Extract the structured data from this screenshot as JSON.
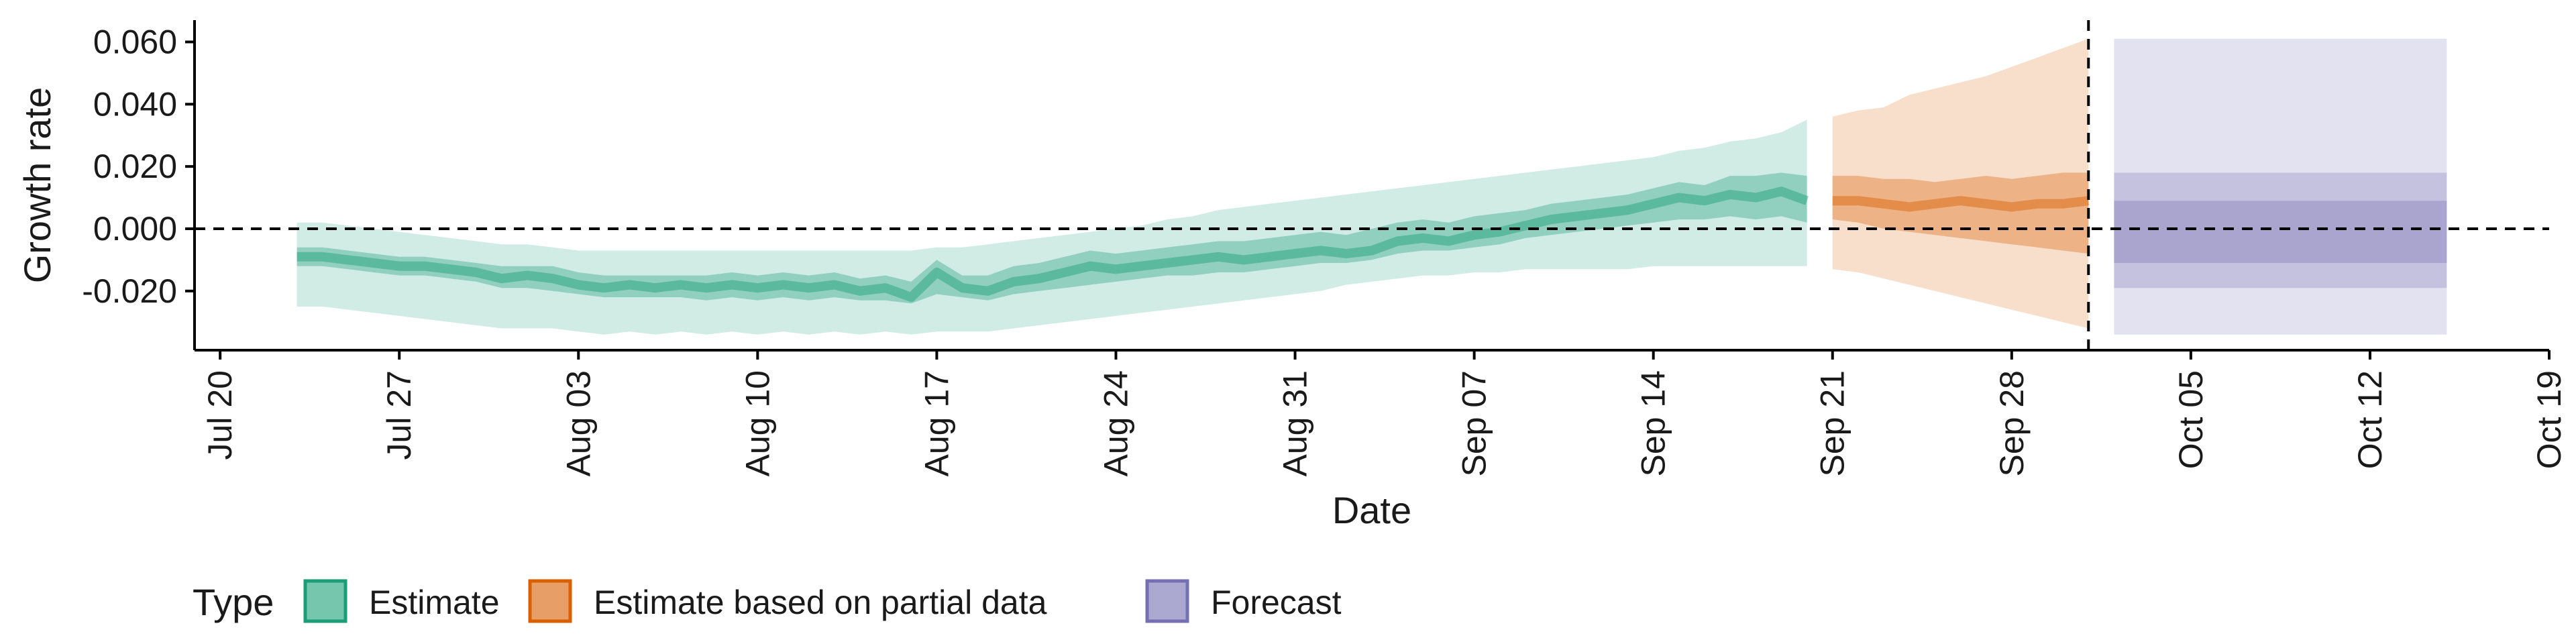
{
  "chart_data": {
    "type": "area",
    "xlabel": "Date",
    "ylabel": "Growth rate",
    "x_ticks": [
      {
        "date": "2020-07-20",
        "label": "Jul 20"
      },
      {
        "date": "2020-07-27",
        "label": "Jul 27"
      },
      {
        "date": "2020-08-03",
        "label": "Aug 03"
      },
      {
        "date": "2020-08-10",
        "label": "Aug 10"
      },
      {
        "date": "2020-08-17",
        "label": "Aug 17"
      },
      {
        "date": "2020-08-24",
        "label": "Aug 24"
      },
      {
        "date": "2020-08-31",
        "label": "Aug 31"
      },
      {
        "date": "2020-09-07",
        "label": "Sep 07"
      },
      {
        "date": "2020-09-14",
        "label": "Sep 14"
      },
      {
        "date": "2020-09-21",
        "label": "Sep 21"
      },
      {
        "date": "2020-09-28",
        "label": "Sep 28"
      },
      {
        "date": "2020-10-05",
        "label": "Oct 05"
      },
      {
        "date": "2020-10-12",
        "label": "Oct 12"
      },
      {
        "date": "2020-10-19",
        "label": "Oct 19"
      }
    ],
    "y_ticks": [
      {
        "value": -0.02,
        "label": "-0.020"
      },
      {
        "value": 0.0,
        "label": "0.000"
      },
      {
        "value": 0.02,
        "label": "0.020"
      },
      {
        "value": 0.04,
        "label": "0.040"
      },
      {
        "value": 0.06,
        "label": "0.060"
      }
    ],
    "xlim": [
      "2020-07-19",
      "2020-10-19"
    ],
    "ylim": [
      -0.039,
      0.067
    ],
    "reference_lines": {
      "horizontal_y": 0.0,
      "vertical_date": "2020-10-01"
    },
    "grid": false,
    "legend": {
      "title": "Type",
      "placement": "bottom-left",
      "entries": [
        {
          "label": "Estimate",
          "color": "#1b9e77"
        },
        {
          "label": "Estimate based on partial data",
          "color": "#d95f02"
        },
        {
          "label": "Forecast",
          "color": "#7570b3"
        }
      ]
    },
    "series": [
      {
        "type_key": "estimate",
        "color": "#1b9e77",
        "dates": [
          "2020-07-23",
          "2020-07-24",
          "2020-07-25",
          "2020-07-26",
          "2020-07-27",
          "2020-07-28",
          "2020-07-29",
          "2020-07-30",
          "2020-07-31",
          "2020-08-01",
          "2020-08-02",
          "2020-08-03",
          "2020-08-04",
          "2020-08-05",
          "2020-08-06",
          "2020-08-07",
          "2020-08-08",
          "2020-08-09",
          "2020-08-10",
          "2020-08-11",
          "2020-08-12",
          "2020-08-13",
          "2020-08-14",
          "2020-08-15",
          "2020-08-16",
          "2020-08-17",
          "2020-08-18",
          "2020-08-19",
          "2020-08-20",
          "2020-08-21",
          "2020-08-22",
          "2020-08-23",
          "2020-08-24",
          "2020-08-25",
          "2020-08-26",
          "2020-08-27",
          "2020-08-28",
          "2020-08-29",
          "2020-08-30",
          "2020-08-31",
          "2020-09-01",
          "2020-09-02",
          "2020-09-03",
          "2020-09-04",
          "2020-09-05",
          "2020-09-06",
          "2020-09-07",
          "2020-09-08",
          "2020-09-09",
          "2020-09-10",
          "2020-09-11",
          "2020-09-12",
          "2020-09-13",
          "2020-09-14",
          "2020-09-15",
          "2020-09-16",
          "2020-09-17",
          "2020-09-18",
          "2020-09-19",
          "2020-09-20"
        ],
        "median": [
          -0.009,
          -0.009,
          -0.01,
          -0.011,
          -0.012,
          -0.012,
          -0.013,
          -0.014,
          -0.016,
          -0.015,
          -0.016,
          -0.018,
          -0.019,
          -0.018,
          -0.019,
          -0.018,
          -0.019,
          -0.018,
          -0.019,
          -0.018,
          -0.019,
          -0.018,
          -0.02,
          -0.019,
          -0.022,
          -0.014,
          -0.019,
          -0.02,
          -0.017,
          -0.016,
          -0.014,
          -0.012,
          -0.013,
          -0.012,
          -0.011,
          -0.01,
          -0.009,
          -0.01,
          -0.009,
          -0.008,
          -0.007,
          -0.008,
          -0.007,
          -0.004,
          -0.003,
          -0.004,
          -0.002,
          -0.001,
          0.001,
          0.003,
          0.004,
          0.005,
          0.006,
          0.008,
          0.01,
          0.009,
          0.011,
          0.01,
          0.012,
          0.009
        ],
        "lower_50": [
          -0.012,
          -0.012,
          -0.013,
          -0.014,
          -0.015,
          -0.015,
          -0.016,
          -0.017,
          -0.019,
          -0.019,
          -0.02,
          -0.021,
          -0.022,
          -0.022,
          -0.022,
          -0.022,
          -0.023,
          -0.022,
          -0.023,
          -0.022,
          -0.023,
          -0.022,
          -0.023,
          -0.023,
          -0.024,
          -0.021,
          -0.022,
          -0.023,
          -0.021,
          -0.02,
          -0.019,
          -0.018,
          -0.017,
          -0.016,
          -0.015,
          -0.015,
          -0.014,
          -0.014,
          -0.013,
          -0.012,
          -0.011,
          -0.011,
          -0.01,
          -0.008,
          -0.007,
          -0.007,
          -0.006,
          -0.005,
          -0.003,
          -0.002,
          -0.001,
          0.0,
          0.001,
          0.002,
          0.003,
          0.003,
          0.004,
          0.003,
          0.004,
          0.002
        ],
        "upper_50": [
          -0.006,
          -0.006,
          -0.007,
          -0.008,
          -0.009,
          -0.009,
          -0.01,
          -0.011,
          -0.012,
          -0.012,
          -0.012,
          -0.014,
          -0.015,
          -0.015,
          -0.015,
          -0.015,
          -0.015,
          -0.014,
          -0.015,
          -0.014,
          -0.015,
          -0.014,
          -0.016,
          -0.015,
          -0.017,
          -0.01,
          -0.015,
          -0.015,
          -0.012,
          -0.011,
          -0.009,
          -0.007,
          -0.008,
          -0.007,
          -0.006,
          -0.005,
          -0.004,
          -0.004,
          -0.003,
          -0.002,
          -0.001,
          -0.002,
          0.0,
          0.002,
          0.003,
          0.002,
          0.004,
          0.005,
          0.006,
          0.008,
          0.009,
          0.01,
          0.011,
          0.013,
          0.015,
          0.014,
          0.017,
          0.017,
          0.018,
          0.017
        ],
        "lower_90": [
          -0.025,
          -0.025,
          -0.026,
          -0.027,
          -0.028,
          -0.029,
          -0.03,
          -0.031,
          -0.032,
          -0.032,
          -0.032,
          -0.033,
          -0.034,
          -0.033,
          -0.034,
          -0.033,
          -0.034,
          -0.033,
          -0.034,
          -0.033,
          -0.034,
          -0.033,
          -0.034,
          -0.033,
          -0.034,
          -0.033,
          -0.033,
          -0.033,
          -0.032,
          -0.031,
          -0.03,
          -0.029,
          -0.028,
          -0.027,
          -0.026,
          -0.025,
          -0.024,
          -0.023,
          -0.022,
          -0.021,
          -0.02,
          -0.018,
          -0.017,
          -0.016,
          -0.015,
          -0.015,
          -0.014,
          -0.014,
          -0.013,
          -0.013,
          -0.013,
          -0.013,
          -0.013,
          -0.012,
          -0.012,
          -0.012,
          -0.012,
          -0.012,
          -0.012,
          -0.012
        ],
        "upper_90": [
          0.002,
          0.002,
          0.001,
          0.0,
          -0.001,
          -0.002,
          -0.003,
          -0.004,
          -0.005,
          -0.005,
          -0.006,
          -0.007,
          -0.007,
          -0.007,
          -0.007,
          -0.007,
          -0.007,
          -0.007,
          -0.007,
          -0.007,
          -0.007,
          -0.007,
          -0.007,
          -0.007,
          -0.007,
          -0.006,
          -0.006,
          -0.005,
          -0.004,
          -0.003,
          -0.002,
          -0.001,
          0.0,
          0.001,
          0.003,
          0.004,
          0.006,
          0.007,
          0.008,
          0.009,
          0.01,
          0.011,
          0.012,
          0.013,
          0.014,
          0.015,
          0.016,
          0.017,
          0.018,
          0.019,
          0.02,
          0.021,
          0.022,
          0.023,
          0.025,
          0.026,
          0.028,
          0.029,
          0.031,
          0.035
        ]
      },
      {
        "type_key": "partial",
        "color": "#d95f02",
        "dates": [
          "2020-09-21",
          "2020-09-22",
          "2020-09-23",
          "2020-09-24",
          "2020-09-25",
          "2020-09-26",
          "2020-09-27",
          "2020-09-28",
          "2020-09-29",
          "2020-09-30",
          "2020-10-01"
        ],
        "median": [
          0.009,
          0.009,
          0.008,
          0.007,
          0.008,
          0.009,
          0.008,
          0.007,
          0.008,
          0.008,
          0.009
        ],
        "lower_50": [
          0.003,
          0.002,
          0.0,
          -0.001,
          -0.002,
          -0.003,
          -0.004,
          -0.005,
          -0.006,
          -0.007,
          -0.008
        ],
        "upper_50": [
          0.017,
          0.017,
          0.016,
          0.016,
          0.015,
          0.016,
          0.017,
          0.016,
          0.017,
          0.018,
          0.018
        ],
        "lower_90": [
          -0.013,
          -0.014,
          -0.016,
          -0.018,
          -0.02,
          -0.022,
          -0.024,
          -0.026,
          -0.028,
          -0.03,
          -0.032
        ],
        "upper_90": [
          0.036,
          0.038,
          0.039,
          0.043,
          0.045,
          0.047,
          0.049,
          0.052,
          0.055,
          0.058,
          0.061
        ]
      },
      {
        "type_key": "forecast",
        "color": "#7570b3",
        "dates": [
          "2020-10-02",
          "2020-10-15"
        ],
        "median": [
          0.0,
          0.0
        ],
        "lower_50": [
          -0.011,
          -0.011
        ],
        "upper_50": [
          0.009,
          0.009
        ],
        "lower_90": [
          -0.019,
          -0.019
        ],
        "upper_90": [
          0.018,
          0.018
        ],
        "lower_outer": [
          -0.034,
          -0.034
        ],
        "upper_outer": [
          0.061,
          0.061
        ]
      }
    ]
  }
}
